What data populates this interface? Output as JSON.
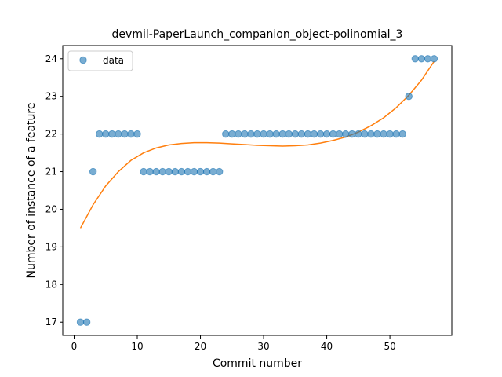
{
  "chart_data": {
    "type": "scatter",
    "title": "devmil-PaperLaunch_companion_object-polinomial_3",
    "xlabel": "Commit number",
    "ylabel": "Number of instance of a feature",
    "xlim": [
      -1.8,
      59.8
    ],
    "ylim": [
      16.65,
      24.35
    ],
    "xticks": [
      0,
      10,
      20,
      30,
      40,
      50
    ],
    "yticks": [
      17,
      18,
      19,
      20,
      21,
      22,
      23,
      24
    ],
    "grid": false,
    "legend_placement": "top-left",
    "series": [
      {
        "name": "data",
        "kind": "scatter",
        "color": "#1f77b4",
        "x": [
          1,
          2,
          3,
          4,
          5,
          6,
          7,
          8,
          9,
          10,
          11,
          12,
          13,
          14,
          15,
          16,
          17,
          18,
          19,
          20,
          21,
          22,
          23,
          24,
          25,
          26,
          27,
          28,
          29,
          30,
          31,
          32,
          33,
          34,
          35,
          36,
          37,
          38,
          39,
          40,
          41,
          42,
          43,
          44,
          45,
          46,
          47,
          48,
          49,
          50,
          51,
          52,
          53,
          54,
          55,
          56,
          57
        ],
        "y": [
          17,
          17,
          21,
          22,
          22,
          22,
          22,
          22,
          22,
          22,
          21,
          21,
          21,
          21,
          21,
          21,
          21,
          21,
          21,
          21,
          21,
          21,
          21,
          22,
          22,
          22,
          22,
          22,
          22,
          22,
          22,
          22,
          22,
          22,
          22,
          22,
          22,
          22,
          22,
          22,
          22,
          22,
          22,
          22,
          22,
          22,
          22,
          22,
          22,
          22,
          22,
          22,
          23,
          24,
          24,
          24,
          24
        ]
      },
      {
        "kind": "line",
        "color": "#ff7f0e",
        "x": [
          1,
          3,
          5,
          7,
          9,
          11,
          13,
          15,
          17,
          19,
          21,
          23,
          25,
          27,
          29,
          31,
          33,
          35,
          37,
          39,
          41,
          43,
          45,
          47,
          49,
          51,
          53,
          55,
          57
        ],
        "y": [
          19.5,
          20.12,
          20.62,
          21.0,
          21.3,
          21.5,
          21.63,
          21.71,
          21.75,
          21.77,
          21.77,
          21.76,
          21.74,
          21.72,
          21.7,
          21.69,
          21.68,
          21.69,
          21.71,
          21.76,
          21.83,
          21.92,
          22.05,
          22.22,
          22.43,
          22.7,
          23.03,
          23.43,
          23.93
        ]
      }
    ]
  }
}
